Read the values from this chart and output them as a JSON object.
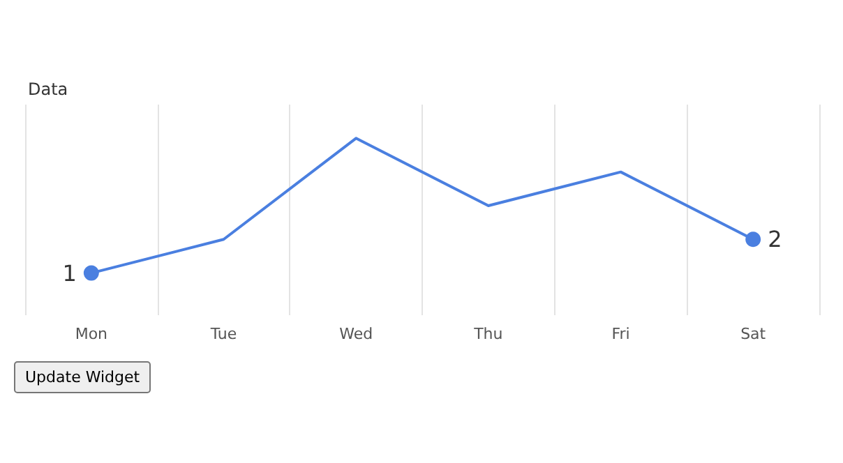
{
  "chart_data": {
    "type": "line",
    "title": "Data",
    "categories": [
      "Mon",
      "Tue",
      "Wed",
      "Thu",
      "Fri",
      "Sat"
    ],
    "series": [
      {
        "color": "#4a7fe0",
        "values": [
          1,
          2,
          5,
          3,
          4,
          2
        ],
        "value_labels": [
          "1",
          null,
          null,
          null,
          null,
          "2"
        ]
      }
    ],
    "ylim": [
      -0.25,
      6
    ],
    "tick_labels": "x",
    "grid": "x",
    "line_style": "solid",
    "annotations": [
      "Update Widget"
    ]
  }
}
